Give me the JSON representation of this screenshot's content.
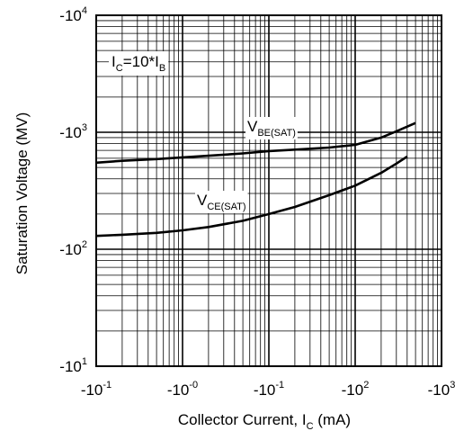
{
  "chart_data": {
    "type": "line",
    "title": "",
    "xlabel": {
      "main": "Collector Current, I",
      "sub": "C",
      "unit": " (mA)"
    },
    "ylabel": "Saturation Voltage (MV)",
    "x_scale": "log",
    "y_scale": "log",
    "xlim": [
      0.1,
      1000
    ],
    "ylim": [
      10,
      10000
    ],
    "grid": true,
    "x_ticks": [
      {
        "base": "-10",
        "exp": "-1"
      },
      {
        "base": "-10",
        "exp": "-0"
      },
      {
        "base": "-10",
        "exp": "-1"
      },
      {
        "base": "-10",
        "exp": "2"
      },
      {
        "base": "-10",
        "exp": "3"
      }
    ],
    "y_ticks": [
      {
        "base": "-10",
        "exp": "1"
      },
      {
        "base": "-10",
        "exp": "2"
      },
      {
        "base": "-10",
        "exp": "3"
      },
      {
        "base": "-10",
        "exp": "4"
      }
    ],
    "condition_label": {
      "a": "I",
      "a_sub": "C",
      "mid": "=10*I",
      "b_sub": "B"
    },
    "series": [
      {
        "name": {
          "main": "V",
          "sub": "BE(SAT)"
        },
        "x": [
          0.1,
          0.2,
          0.5,
          1,
          2,
          5,
          10,
          20,
          50,
          100,
          200,
          300,
          500
        ],
        "y": [
          550,
          570,
          590,
          610,
          630,
          660,
          690,
          710,
          740,
          780,
          900,
          1020,
          1200
        ]
      },
      {
        "name": {
          "main": "V",
          "sub": "CE(SAT)"
        },
        "x": [
          0.1,
          0.2,
          0.5,
          1,
          2,
          5,
          10,
          20,
          50,
          100,
          200,
          300,
          400
        ],
        "y": [
          130,
          133,
          138,
          145,
          155,
          175,
          200,
          230,
          290,
          350,
          450,
          540,
          620
        ]
      }
    ]
  }
}
